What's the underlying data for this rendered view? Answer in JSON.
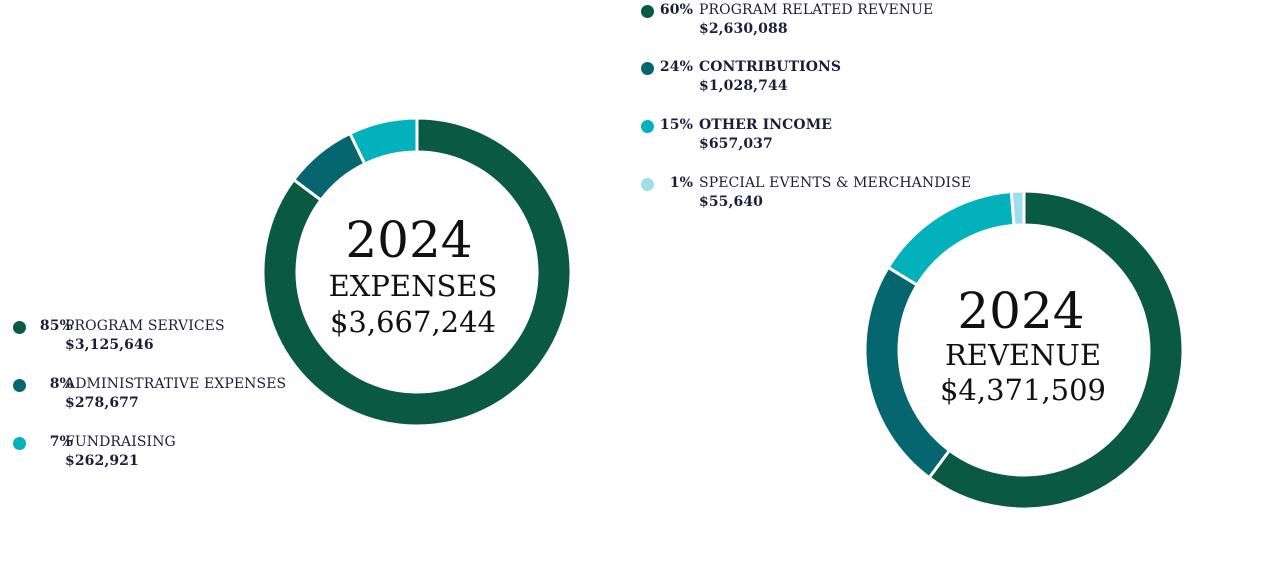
{
  "chart_data": [
    {
      "type": "pie",
      "variant": "donut",
      "center": {
        "year": "2024",
        "title": "EXPENSES",
        "total": "$3,667,244"
      },
      "legend_placement": "bottom-left",
      "slices": [
        {
          "label": "PROGRAM SERVICES",
          "percent_label": "85%",
          "amount": "$3,125,646",
          "value": 3125646,
          "color": "#0a5943",
          "label_bold": false
        },
        {
          "label": "ADMINISTRATIVE EXPENSES",
          "percent_label": "8%",
          "amount": "$278,677",
          "value": 278677,
          "color": "#05666f",
          "label_bold": false
        },
        {
          "label": "FUNDRAISING",
          "percent_label": "7%",
          "amount": "$262,921",
          "value": 262921,
          "color": "#02b1bb",
          "label_bold": false
        }
      ]
    },
    {
      "type": "pie",
      "variant": "donut",
      "center": {
        "year": "2024",
        "title": "REVENUE",
        "total": "$4,371,509"
      },
      "legend_placement": "top-center",
      "slices": [
        {
          "label": "PROGRAM RELATED REVENUE",
          "percent_label": "60%",
          "amount": "$2,630,088",
          "value": 2630088,
          "color": "#0a5943",
          "label_bold": false
        },
        {
          "label": "CONTRIBUTIONS",
          "percent_label": "24%",
          "amount": "$1,028,744",
          "value": 1028744,
          "color": "#05666f",
          "label_bold": true
        },
        {
          "label": "OTHER INCOME",
          "percent_label": "15%",
          "amount": "$657,037",
          "value": 657037,
          "color": "#02b1bb",
          "label_bold": true
        },
        {
          "label": "SPECIAL EVENTS & MERCHANDISE",
          "percent_label": "1%",
          "amount": "$55,640",
          "value": 55640,
          "color": "#9fdcec",
          "label_bold": false
        }
      ]
    }
  ]
}
